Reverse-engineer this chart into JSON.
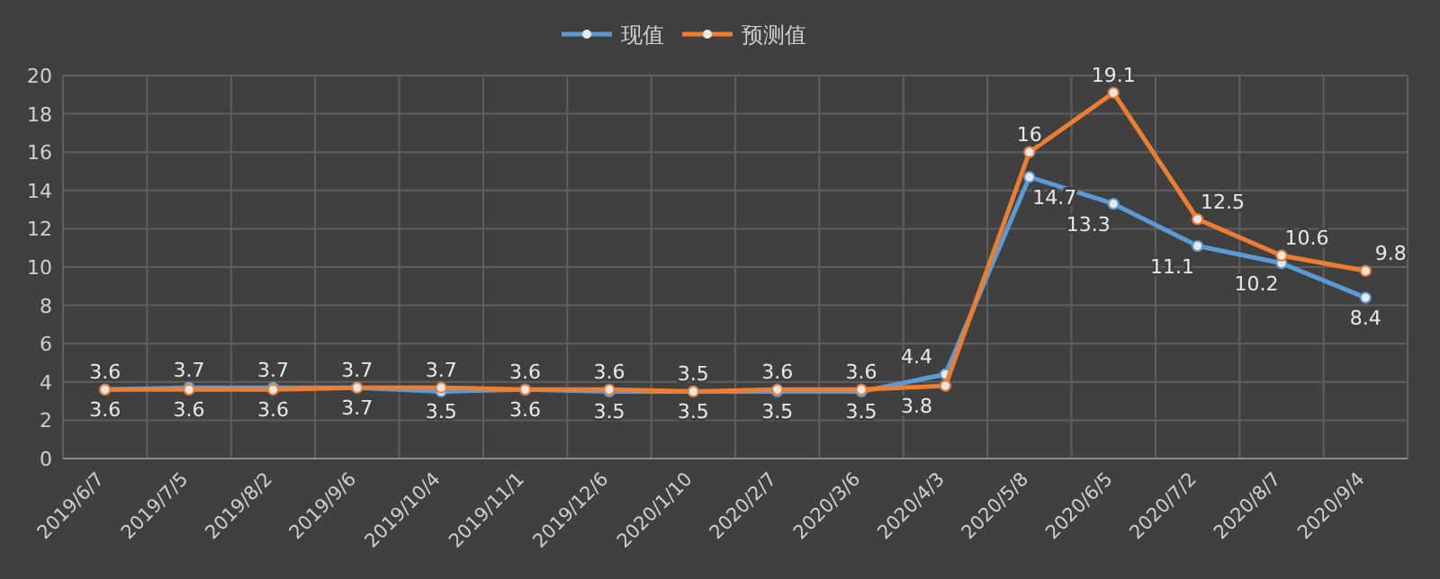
{
  "chart_data": {
    "type": "line",
    "categories": [
      "2019/6/7",
      "2019/7/5",
      "2019/8/2",
      "2019/9/6",
      "2019/10/4",
      "2019/11/1",
      "2019/12/6",
      "2020/1/10",
      "2020/2/7",
      "2020/3/6",
      "2020/4/3",
      "2020/5/8",
      "2020/6/5",
      "2020/7/2",
      "2020/8/7",
      "2020/9/4"
    ],
    "series": [
      {
        "name": "现值",
        "color": "#5b9bd5",
        "values": [
          3.6,
          3.7,
          3.7,
          3.7,
          3.5,
          3.6,
          3.5,
          3.5,
          3.5,
          3.5,
          4.4,
          14.7,
          13.3,
          11.1,
          10.2,
          8.4
        ]
      },
      {
        "name": "预测值",
        "color": "#ed7d31",
        "values": [
          3.6,
          3.6,
          3.6,
          3.7,
          3.7,
          3.6,
          3.6,
          3.5,
          3.6,
          3.6,
          3.8,
          16,
          19.1,
          12.5,
          10.6,
          9.8
        ]
      }
    ],
    "ylim": [
      0,
      20
    ],
    "yticks": [
      0,
      2,
      4,
      6,
      8,
      10,
      12,
      14,
      16,
      18,
      20
    ],
    "grid": true,
    "legend": "top",
    "marker": "circle",
    "data_labels": true
  }
}
